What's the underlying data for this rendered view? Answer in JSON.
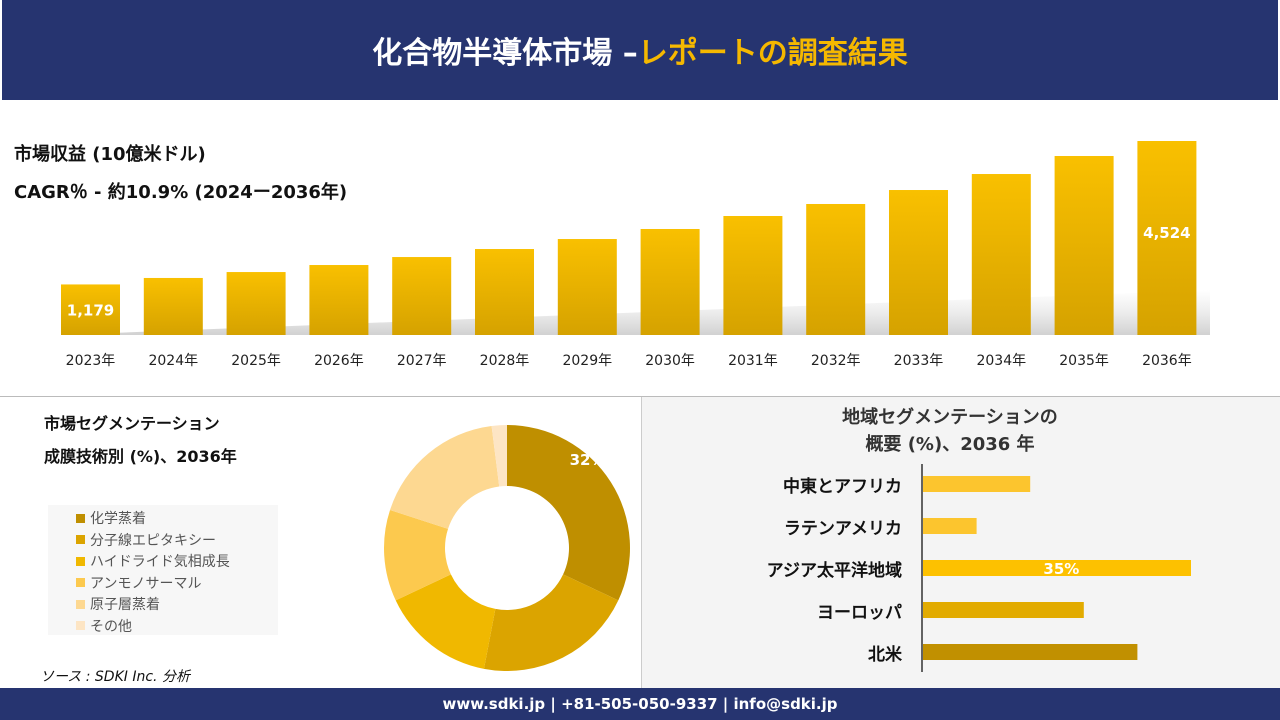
{
  "header": {
    "title_main": "化合物半導体市場 –",
    "title_accent": "レポートの調査結果"
  },
  "revenue": {
    "label": "市場収益 (10億米ドル)",
    "cagr": "CAGR％ - 約10.9% (2024ー2036年)"
  },
  "segment": {
    "title_line1": "市場セグメンテーション",
    "title_line2": "成膜技術別 (%)、2036年"
  },
  "source": "ソース : SDKI Inc. 分析",
  "region": {
    "title_line1": "地域セグメンテーションの",
    "title_line2": "概要 (%)、2036 年"
  },
  "footer": "www.sdki.jp | +81-505-050-9337 | info@sdki.jp",
  "colors": {
    "navy": "#263470",
    "accent": "#f5b800"
  },
  "chart_data": [
    {
      "type": "bar",
      "title": "市場収益 (10億米ドル)",
      "categories": [
        "2023年",
        "2024年",
        "2025年",
        "2026年",
        "2027年",
        "2028年",
        "2029年",
        "2030年",
        "2031年",
        "2032年",
        "2033年",
        "2034年",
        "2035年",
        "2036年"
      ],
      "values": [
        1179,
        1330,
        1468,
        1632,
        1818,
        2005,
        2238,
        2472,
        2775,
        3055,
        3381,
        3754,
        4174,
        4524
      ],
      "data_labels": {
        "0": "1,179",
        "13": "4,524"
      },
      "grid": false
    },
    {
      "type": "pie",
      "donut": true,
      "title": "成膜技術別 (%)、2036年",
      "labels": [
        "化学蒸着",
        "分子線エピタキシー",
        "ハイドライド気相成長",
        "アンモノサーマル",
        "原子層蒸着",
        "その他"
      ],
      "values": [
        32,
        21,
        15,
        12,
        18,
        2
      ],
      "data_labels": {
        "0": "32%"
      },
      "colors": [
        "#bf8f00",
        "#dba400",
        "#f0b800",
        "#fcc94e",
        "#fdd891",
        "#fde5c4"
      ],
      "legend": "left"
    },
    {
      "type": "bar",
      "orientation": "horizontal",
      "title": "地域セグメンテーションの概要 (%)、2036 年",
      "categories": [
        "中東とアフリカ",
        "ラテンアメリカ",
        "アジア太平洋地域",
        "ヨーロッパ",
        "北米"
      ],
      "values": [
        14,
        7,
        35,
        21,
        28
      ],
      "data_labels": {
        "2": "35%"
      },
      "colors": [
        "#fcc52e",
        "#fcc52e",
        "#fdc100",
        "#e2ab00",
        "#c19000"
      ]
    }
  ]
}
